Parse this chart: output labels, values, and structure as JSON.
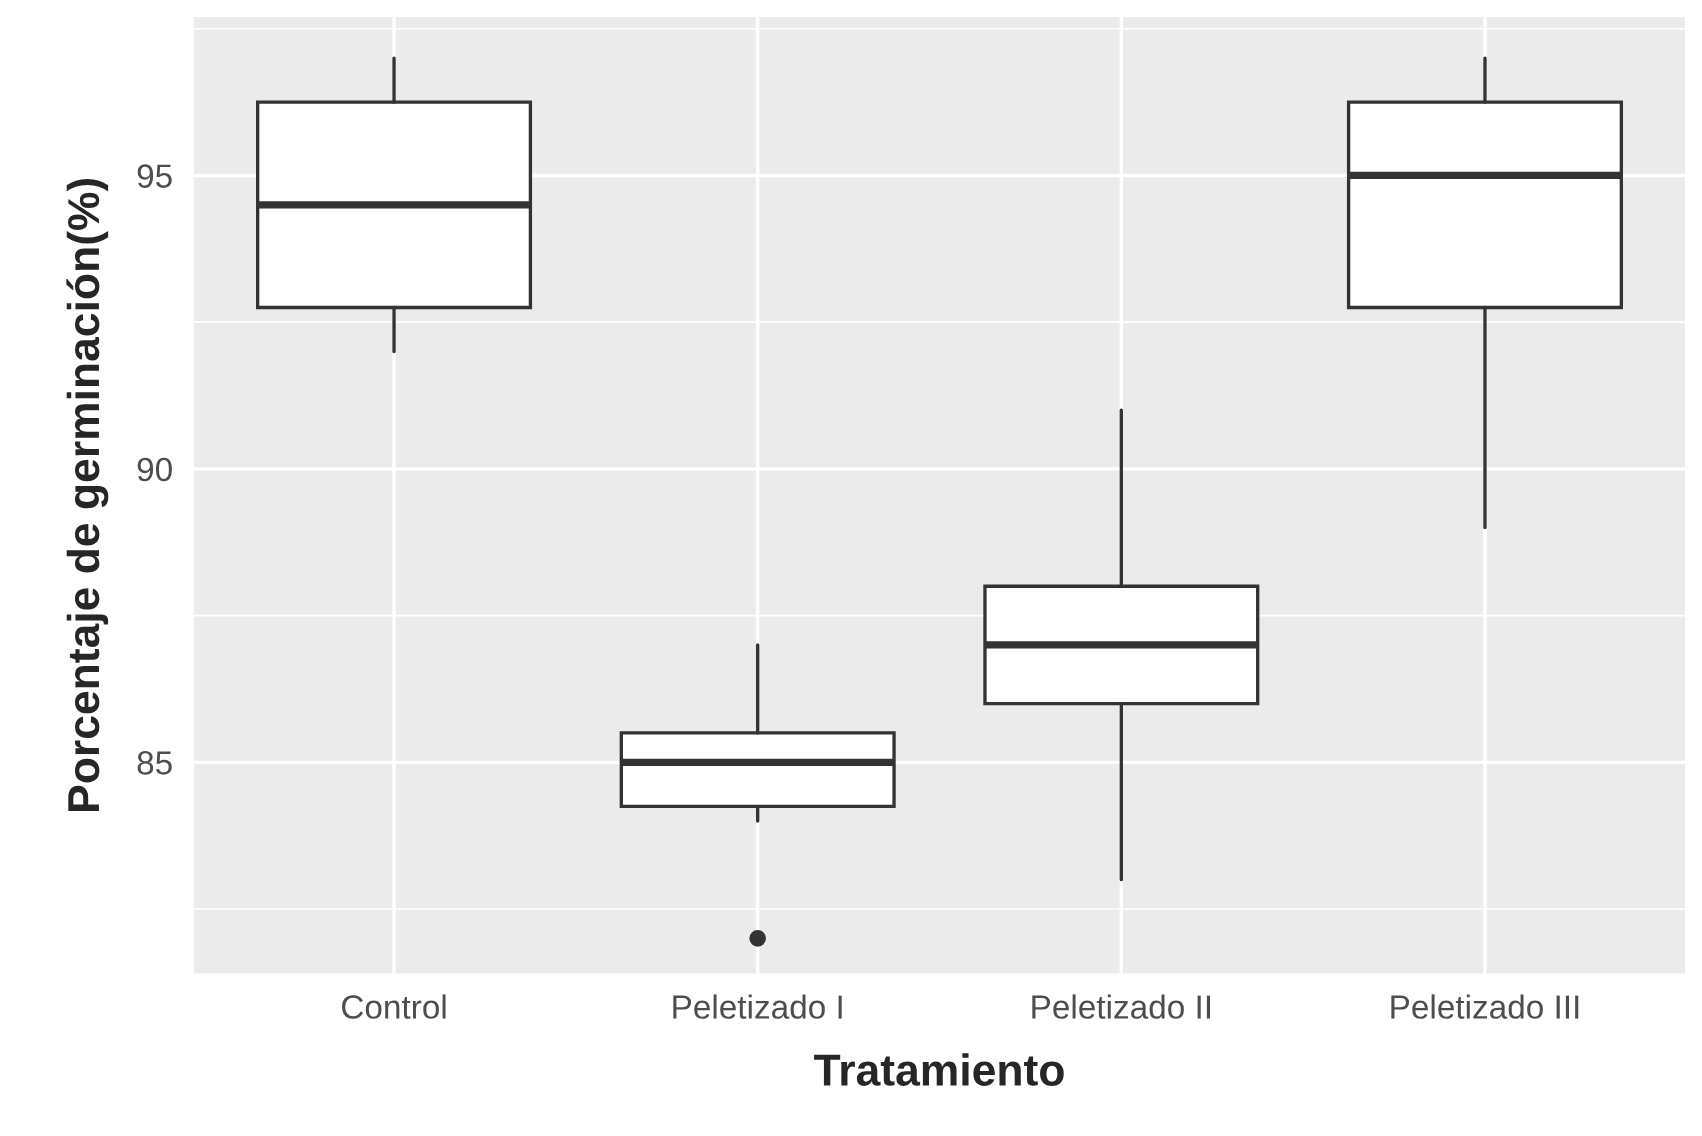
{
  "chart_data": {
    "type": "box",
    "xlabel": "Tratamiento",
    "ylabel": "Porcentaje de germinación(%)",
    "categories": [
      "Control",
      "Peletizado I",
      "Peletizado II",
      "Peletizado III"
    ],
    "boxes": [
      {
        "low": 92,
        "q1": 92.75,
        "median": 94.5,
        "q3": 96.25,
        "high": 97
      },
      {
        "low": 84,
        "q1": 84.25,
        "median": 85,
        "q3": 85.5,
        "high": 87,
        "outliers": [
          82
        ]
      },
      {
        "low": 83,
        "q1": 86,
        "median": 87,
        "q3": 88,
        "high": 91
      },
      {
        "low": 89,
        "q1": 92.75,
        "median": 95,
        "q3": 96.25,
        "high": 97
      }
    ],
    "ylim": [
      81.4,
      97.7
    ],
    "yticks": [
      85,
      90,
      95
    ],
    "grid": true
  }
}
